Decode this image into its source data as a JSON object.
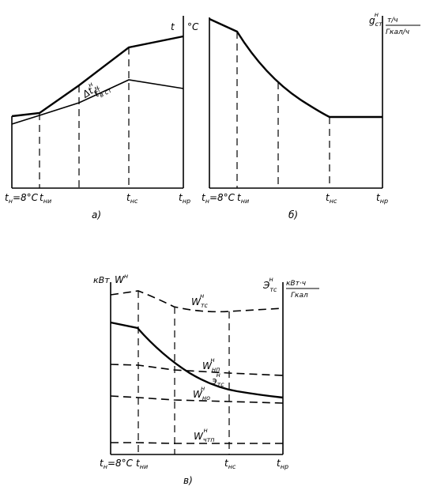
{
  "panel_a": {
    "caption": "а)",
    "axis_unit": "°С",
    "y_axis": {
      "base": "t"
    },
    "curve_upper": {
      "base": "Δt",
      "sub": "ст",
      "sup": "н"
    },
    "curve_lower": {
      "base": "t",
      "sub": "в ст",
      "sup": "н"
    },
    "x_ticks": [
      {
        "base": "t",
        "sub": "н",
        "rest": "=8°С"
      },
      {
        "base": "t",
        "sub": "ни",
        "rest": ""
      },
      {
        "base": "t",
        "sub": "нс",
        "rest": ""
      },
      {
        "base": "t",
        "sub": "нр",
        "rest": ""
      }
    ]
  },
  "panel_b": {
    "caption": "б)",
    "y_axis": {
      "base": "g",
      "sub": "ст",
      "sup": "н"
    },
    "y_unit_num": "т/ч",
    "y_unit_den": "Гкал/ч",
    "x_ticks": [
      {
        "base": "t",
        "sub": "н",
        "rest": "=8°С"
      },
      {
        "base": "t",
        "sub": "ни",
        "rest": ""
      },
      {
        "base": "t",
        "sub": "нс",
        "rest": ""
      },
      {
        "base": "t",
        "sub": "нр",
        "rest": ""
      }
    ]
  },
  "panel_c": {
    "caption": "в)",
    "left_unit": "кВт",
    "left_axis": {
      "base": "W",
      "sup": "н"
    },
    "right_axis": {
      "base": "Э",
      "sub": "тс",
      "sup": "н"
    },
    "right_unit_num": "кВт·ч",
    "right_unit_den": "Гкал",
    "curves": [
      {
        "base": "W",
        "sub": "тс",
        "sup": "н"
      },
      {
        "base": "W",
        "sub": "нп",
        "sup": "н"
      },
      {
        "base": "э",
        "sub": "тс",
        "sup": "н"
      },
      {
        "base": "W",
        "sub": "но",
        "sup": "н"
      },
      {
        "base": "W",
        "sub": "чтп",
        "sup": "н"
      }
    ],
    "x_ticks": [
      {
        "base": "t",
        "sub": "н",
        "rest": "=8°С"
      },
      {
        "base": "t",
        "sub": "ни",
        "rest": ""
      },
      {
        "base": "t",
        "sub": "нс",
        "rest": ""
      },
      {
        "base": "t",
        "sub": "нр",
        "rest": ""
      }
    ]
  }
}
